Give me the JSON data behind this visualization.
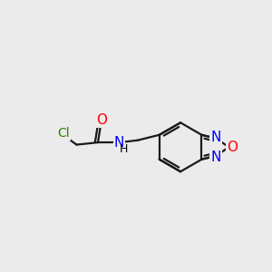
{
  "bg_color": "#ebebeb",
  "bond_color": "#1a1a1a",
  "bond_width": 1.6,
  "atom_colors": {
    "O": "#ff0000",
    "N": "#0000ff",
    "Cl": "#228800",
    "H": "#000000"
  },
  "font_size": 11,
  "fig_width": 3.0,
  "fig_height": 3.0,
  "dpi": 100,
  "xlim": [
    -0.5,
    5.5
  ],
  "ylim": [
    -2.0,
    2.5
  ]
}
